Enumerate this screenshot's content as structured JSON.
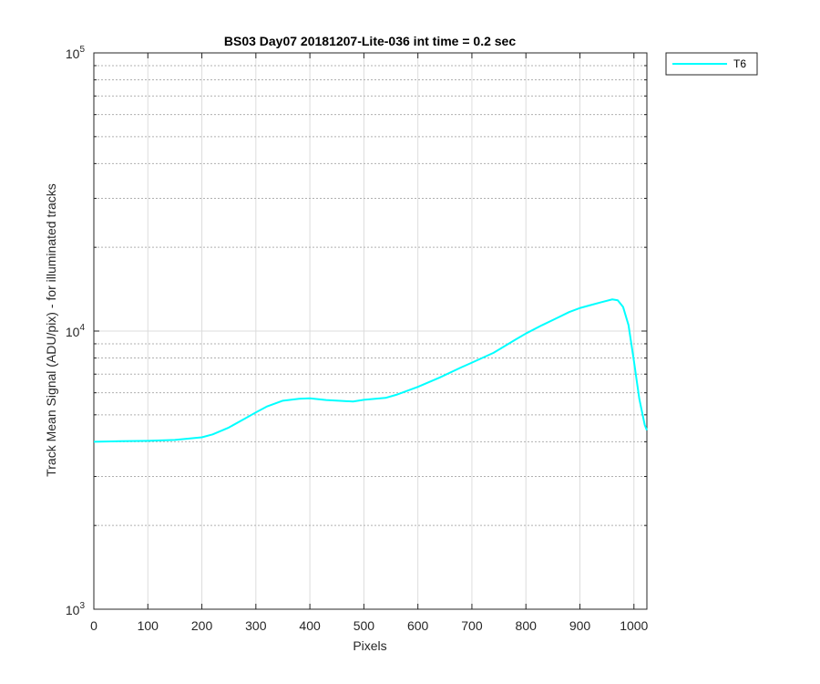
{
  "chart_data": {
    "type": "line",
    "title": "BS03 Day07 20181207-Lite-036 int time = 0.2 sec",
    "xlabel": "Pixels",
    "ylabel": "Track Mean Signal (ADU/pix) - for illuminated tracks",
    "xlim": [
      0,
      1024
    ],
    "ylim": [
      1000,
      100000
    ],
    "yscale": "log",
    "grid": true,
    "x_ticks": [
      "0",
      "100",
      "200",
      "300",
      "400",
      "500",
      "600",
      "700",
      "800",
      "900",
      "1000"
    ],
    "y_ticks": [
      {
        "base": "10",
        "exp": "3",
        "value": 1000
      },
      {
        "base": "10",
        "exp": "4",
        "value": 10000
      },
      {
        "base": "10",
        "exp": "5",
        "value": 100000
      }
    ],
    "legend": {
      "position": "outside-top-right",
      "entries": [
        "T6"
      ]
    },
    "series": [
      {
        "name": "T6",
        "color": "#00ffff",
        "x": [
          0,
          50,
          100,
          150,
          200,
          220,
          250,
          280,
          300,
          320,
          350,
          380,
          400,
          430,
          460,
          480,
          500,
          540,
          560,
          600,
          640,
          680,
          700,
          740,
          780,
          800,
          830,
          860,
          880,
          900,
          920,
          940,
          960,
          970,
          980,
          990,
          1000,
          1010,
          1020,
          1024
        ],
        "y": [
          4000,
          4020,
          4030,
          4060,
          4150,
          4250,
          4500,
          4850,
          5100,
          5350,
          5620,
          5710,
          5730,
          5650,
          5610,
          5580,
          5660,
          5750,
          5900,
          6300,
          6800,
          7400,
          7700,
          8350,
          9300,
          9800,
          10500,
          11200,
          11700,
          12100,
          12400,
          12700,
          13000,
          12900,
          12200,
          10500,
          7800,
          5700,
          4600,
          4400
        ]
      }
    ]
  }
}
